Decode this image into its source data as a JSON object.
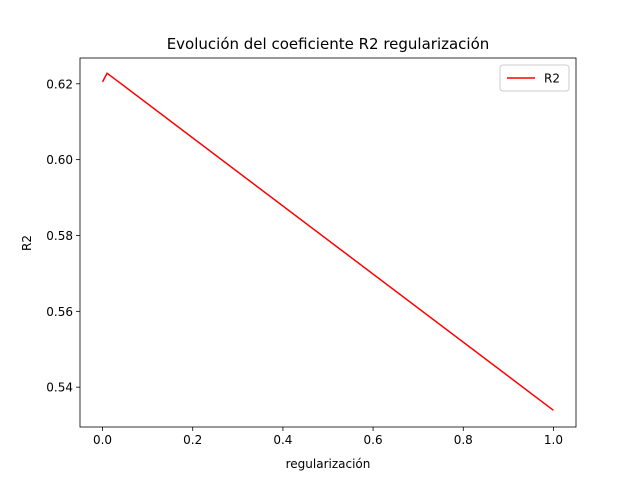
{
  "chart_data": {
    "type": "line",
    "title": "Evolución del coeficiente R2 regularización",
    "xlabel": "regularización",
    "ylabel": "R2",
    "xlim": [
      -0.05,
      1.05
    ],
    "ylim": [
      0.5295,
      0.6268
    ],
    "xticks": [
      0.0,
      0.2,
      0.4,
      0.6,
      0.8,
      1.0
    ],
    "xtick_labels": [
      "0.0",
      "0.2",
      "0.4",
      "0.6",
      "0.8",
      "1.0"
    ],
    "yticks": [
      0.54,
      0.56,
      0.58,
      0.6,
      0.62
    ],
    "ytick_labels": [
      "0.54",
      "0.56",
      "0.58",
      "0.60",
      "0.62"
    ],
    "grid": false,
    "legend_position": "top-right",
    "series": [
      {
        "name": "R2",
        "color": "#ff0000",
        "x": [
          0.0,
          0.01,
          1.0
        ],
        "y": [
          0.6205,
          0.6228,
          0.5339
        ]
      }
    ]
  }
}
